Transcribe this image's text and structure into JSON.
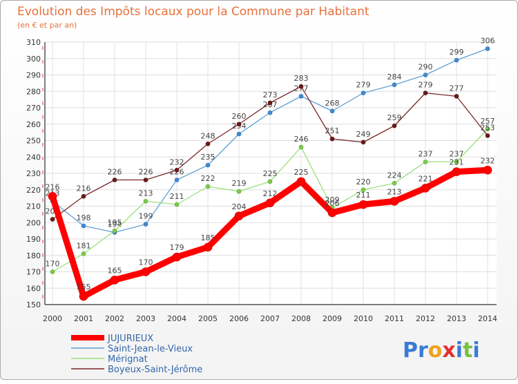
{
  "chart_data": {
    "type": "line",
    "title": "Evolution des Impôts locaux pour la Commune par Habitant",
    "subtitle": "(en € et par an)",
    "x": [
      "2000",
      "2001",
      "2002",
      "2003",
      "2004",
      "2005",
      "2006",
      "2007",
      "2008",
      "2009",
      "2010",
      "2011",
      "2012",
      "2013",
      "2014"
    ],
    "ylim": [
      150,
      310
    ],
    "yticks": [
      150,
      160,
      170,
      180,
      190,
      200,
      210,
      220,
      230,
      240,
      250,
      260,
      270,
      280,
      290,
      300,
      310
    ],
    "grid": true,
    "legend_position": "bottom-left",
    "series": [
      {
        "name": "JUJURIEUX",
        "color": "#ff0000",
        "values": [
          216,
          155,
          165,
          170,
          179,
          185,
          204,
          212,
          225,
          206,
          211,
          213,
          221,
          231,
          232
        ]
      },
      {
        "name": "Saint-Jean-le-Vieux",
        "color": "#5fa0d6",
        "values": [
          213,
          198,
          194,
          199,
          226,
          235,
          254,
          267,
          277,
          268,
          279,
          284,
          290,
          299,
          306
        ]
      },
      {
        "name": "Mérignat",
        "color": "#99e07a",
        "values": [
          170,
          181,
          195,
          213,
          211,
          222,
          219,
          225,
          246,
          209,
          220,
          224,
          237,
          237,
          257
        ]
      },
      {
        "name": "Boyeux-Saint-Jérôme",
        "color": "#7a2626",
        "values": [
          202,
          216,
          226,
          226,
          232,
          248,
          260,
          273,
          283,
          251,
          249,
          259,
          279,
          277,
          253
        ]
      }
    ]
  },
  "logo": {
    "text": "Proxiti"
  }
}
